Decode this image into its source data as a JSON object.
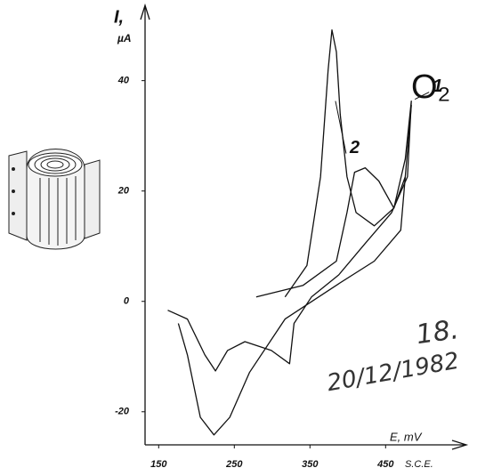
{
  "chart_data": {
    "type": "line",
    "y_label": "I,",
    "y_unit": "µA",
    "x_label": "E, mV",
    "x_reference": "S.C.E.",
    "gas_label": "O₂",
    "notes": [
      "18.",
      "20/12/1982"
    ],
    "xlim": [
      132,
      552
    ],
    "ylim": [
      -26,
      53
    ],
    "xticks": [
      150,
      250,
      350,
      450
    ],
    "yticks": [
      -20,
      0,
      20,
      40
    ],
    "grid": false,
    "color": "#111111",
    "series": [
      {
        "name": "1",
        "color": "#111111",
        "x": [
          279,
          341,
          385,
          399,
          409,
          423,
          441,
          461,
          476,
          484,
          479,
          458,
          423,
          388,
          352,
          329,
          323,
          299,
          264,
          241,
          225,
          211,
          188,
          162
        ],
        "values": [
          0.8,
          2.9,
          7.3,
          16.1,
          23.4,
          24.2,
          21.8,
          16.9,
          25.8,
          36.3,
          22.6,
          16.1,
          10.5,
          4.8,
          0.8,
          -4,
          -11.3,
          -8.9,
          -7.3,
          -8.9,
          -12.6,
          -9.7,
          -3.2,
          -1.6
        ]
      },
      {
        "name": "2",
        "color": "#111111",
        "x": [
          317,
          346,
          364,
          374,
          379,
          385,
          390,
          399,
          411,
          435,
          461,
          476,
          484,
          470,
          435,
          388,
          317,
          270,
          244,
          223,
          205,
          188,
          176
        ],
        "values": [
          0.8,
          6.5,
          22.6,
          41.9,
          49.2,
          45.2,
          33.9,
          22.6,
          16.1,
          13.7,
          16.9,
          22.6,
          35.5,
          12.9,
          7.3,
          3.2,
          -3.2,
          -12.9,
          -21,
          -24.2,
          -21,
          -9.7,
          -4
        ]
      }
    ]
  }
}
